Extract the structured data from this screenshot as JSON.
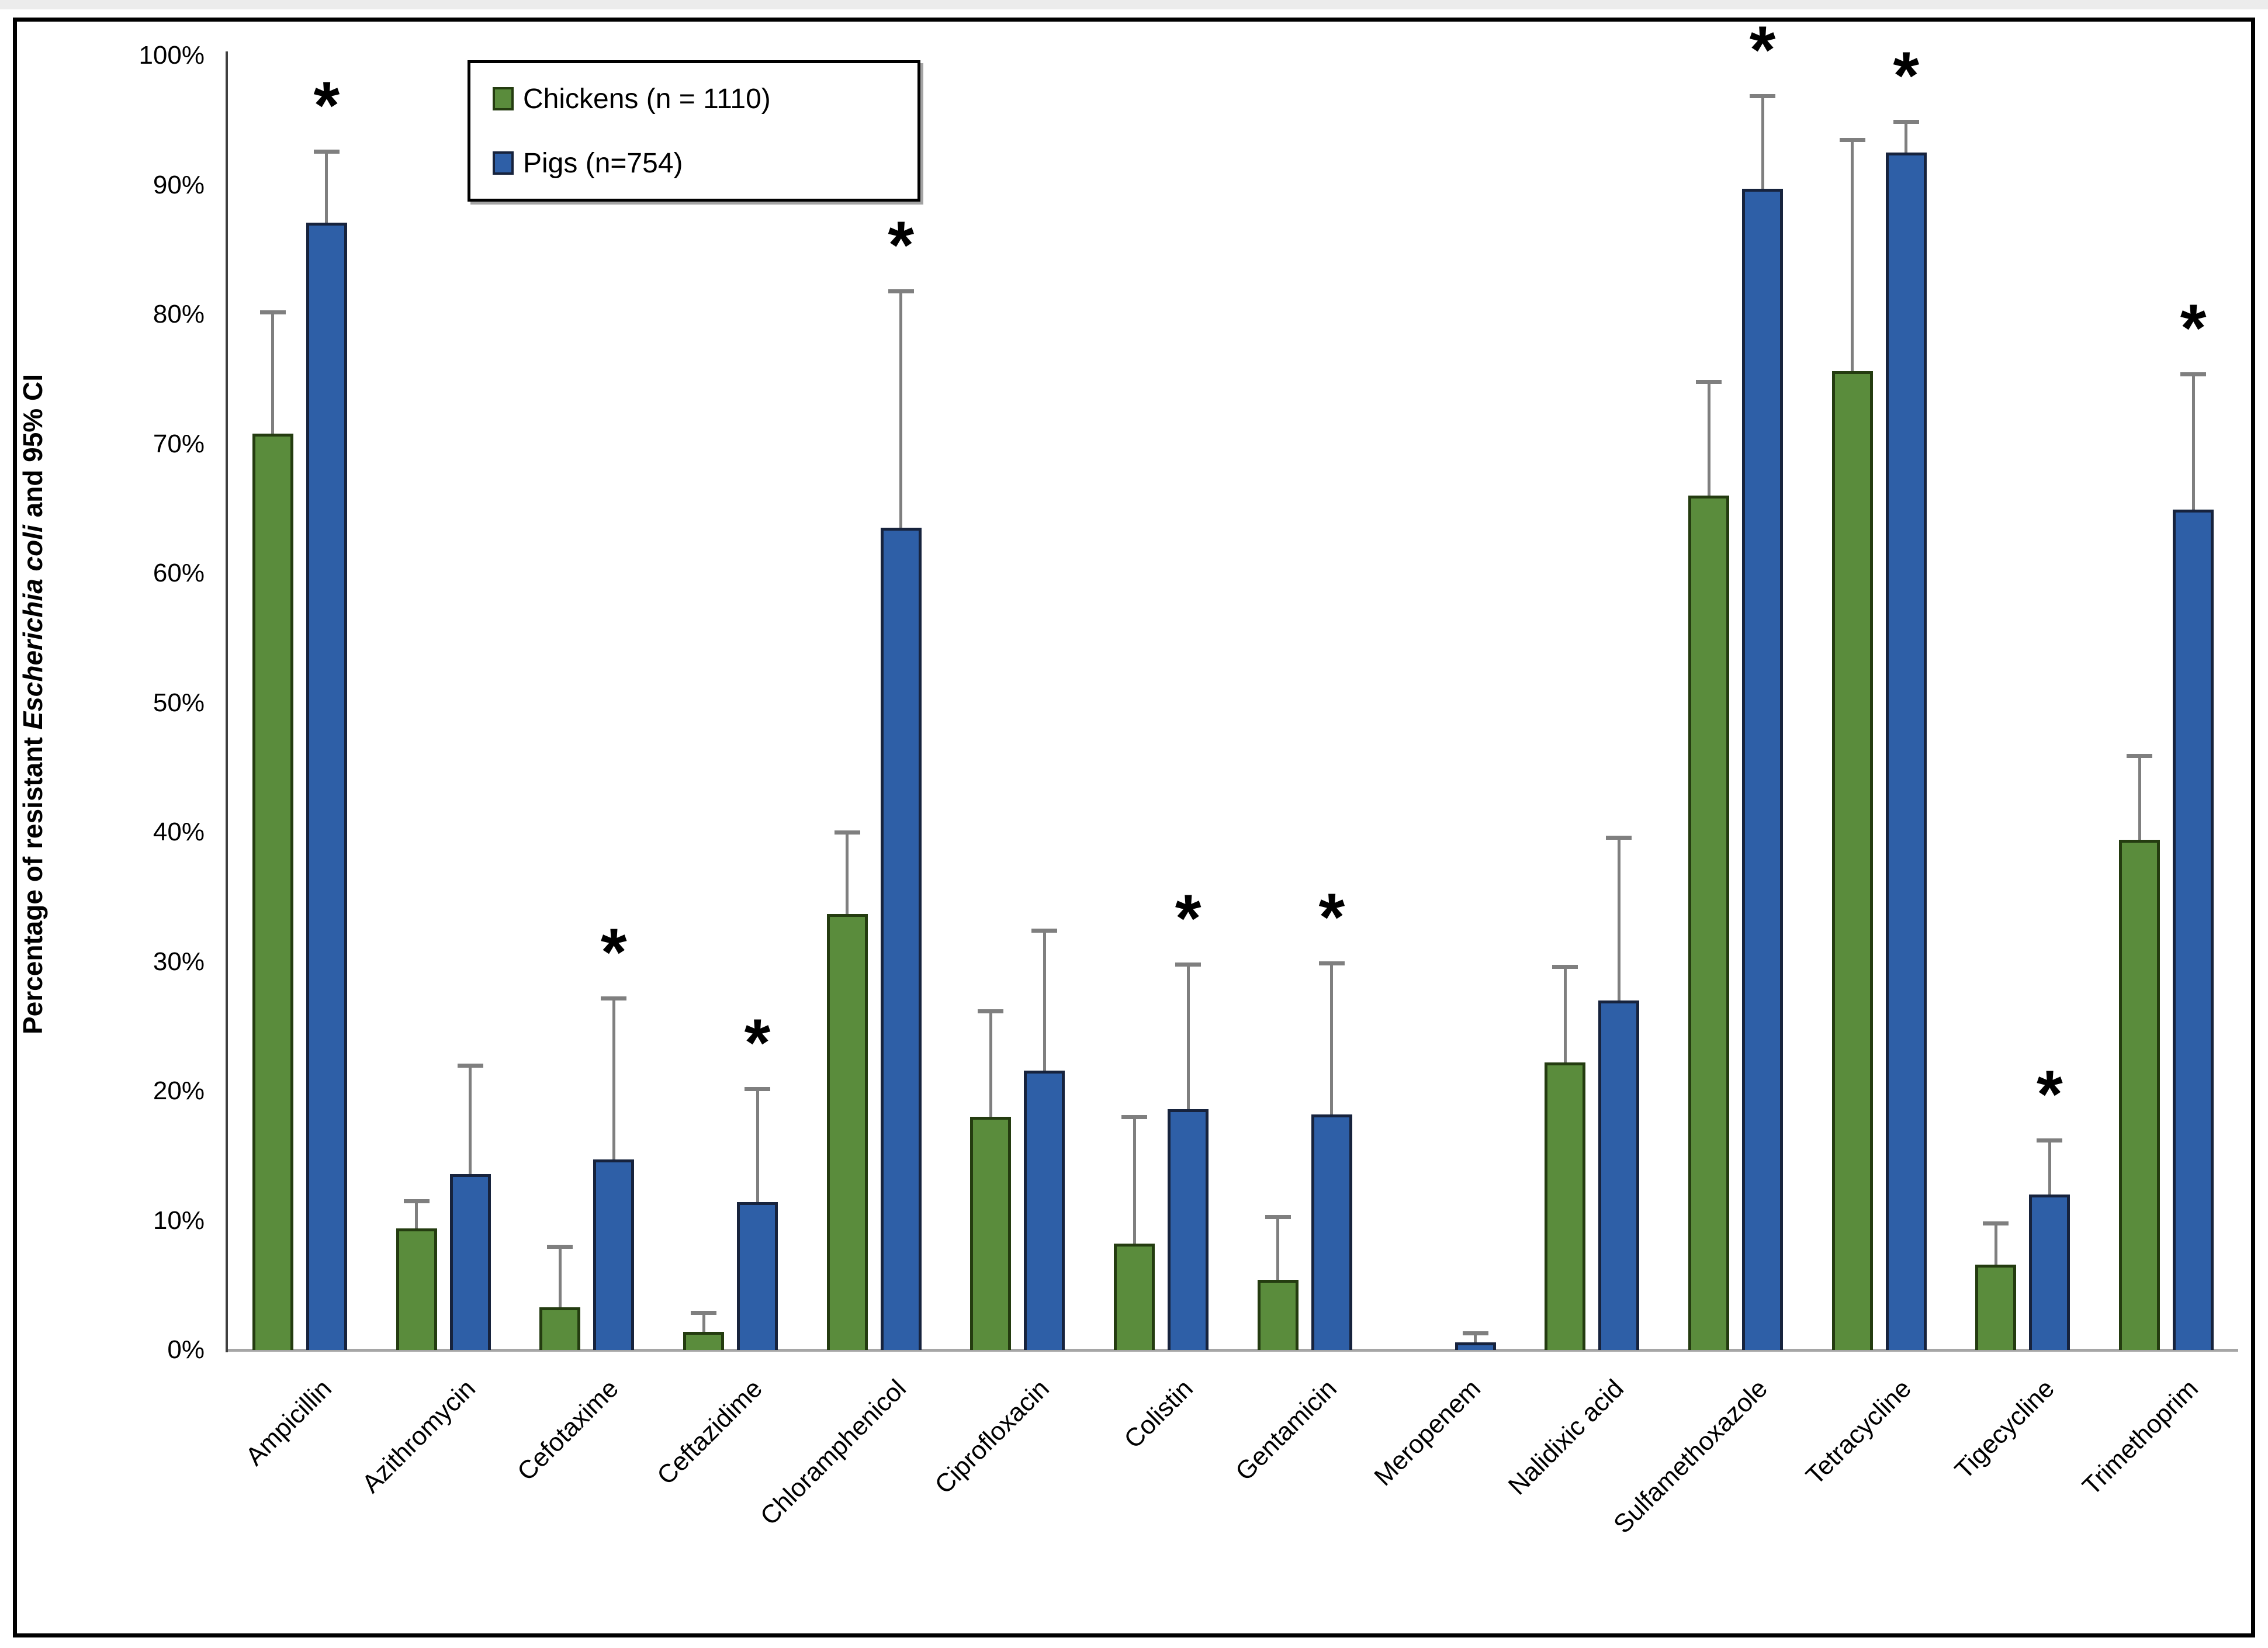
{
  "figure": {
    "background": "#ffffff",
    "frame_color": "#000000"
  },
  "chart_data": {
    "type": "bar",
    "title": "",
    "xlabel": "",
    "ylabel_parts": [
      "Percentage of resistant ",
      "Escherichia coli",
      " and 95% CI"
    ],
    "ylim": [
      0,
      100
    ],
    "ytick_step": 10,
    "ytick_suffix": "%",
    "grid": false,
    "legend_position": "top-left-inside",
    "error_bars": "95% CI upper whiskers",
    "significance_marker": "*",
    "significance_on_series": "Pigs (n=754)",
    "categories": [
      "Ampicillin",
      "Azithromycin",
      "Cefotaxime",
      "Ceftazidime",
      "Chloramphenicol",
      "Ciprofloxacin",
      "Colistin",
      "Gentamicin",
      "Meropenem",
      "Nalidixic acid",
      "Sulfamethoxazole",
      "Tetracycline",
      "Tigecycline",
      "Trimethoprim"
    ],
    "series": [
      {
        "name": "Chickens (n = 1110)",
        "color": "#5a8c3c",
        "border_color": "#243c10",
        "values": [
          70.8,
          9.4,
          3.3,
          1.4,
          33.7,
          18.0,
          8.2,
          5.4,
          0,
          22.2,
          66.0,
          75.6,
          6.6,
          39.4
        ],
        "ci_upper": [
          80.2,
          11.5,
          8.0,
          2.9,
          40.0,
          26.2,
          18.0,
          10.3,
          0,
          29.6,
          74.8,
          93.5,
          9.8,
          45.9
        ]
      },
      {
        "name": "Pigs (n=754)",
        "color": "#2e5fa7",
        "border_color": "#17233d",
        "values": [
          87.1,
          13.6,
          14.7,
          11.4,
          63.5,
          21.6,
          18.6,
          18.2,
          0.6,
          27.0,
          89.7,
          92.5,
          12.0,
          64.9
        ],
        "ci_upper": [
          92.6,
          22.0,
          27.2,
          20.2,
          81.8,
          32.4,
          29.8,
          29.9,
          1.3,
          39.6,
          96.9,
          94.9,
          16.2,
          75.4
        ]
      }
    ],
    "significance": [
      true,
      false,
      true,
      true,
      true,
      false,
      true,
      true,
      false,
      false,
      true,
      true,
      true,
      true
    ]
  },
  "style_colors": {
    "error_bar": "#7f7f7f",
    "y_axis_line": "#3f3f3f",
    "baseline": "#a6a6a6",
    "text": "#000000"
  }
}
